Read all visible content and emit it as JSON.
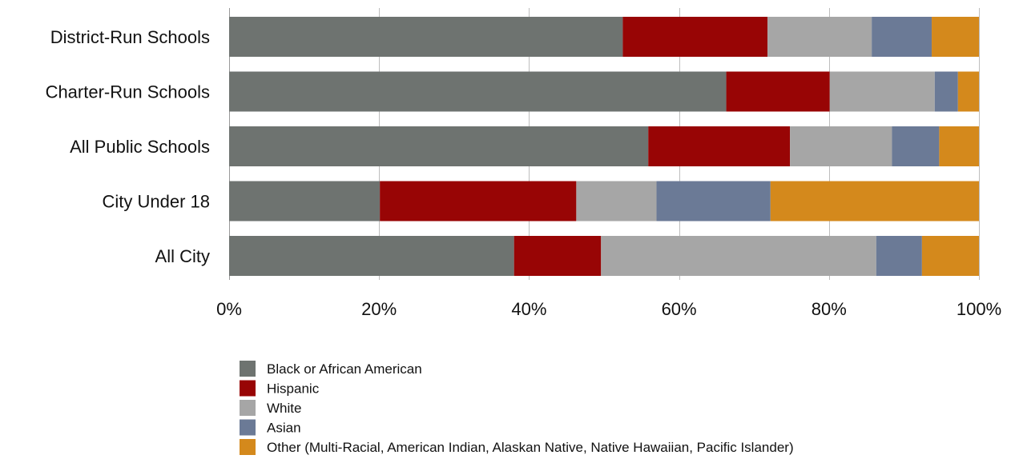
{
  "chart_data": {
    "type": "bar",
    "orientation": "horizontal",
    "stacked": true,
    "percent_stacked": true,
    "title": "",
    "xlabel": "",
    "ylabel": "",
    "xlim": [
      0,
      100
    ],
    "x_ticks": [
      "0%",
      "20%",
      "40%",
      "60%",
      "80%",
      "100%"
    ],
    "grid": true,
    "legend_position": "bottom",
    "categories": [
      "District-Run Schools",
      "Charter-Run Schools",
      "All Public Schools",
      "City Under 18",
      "All City"
    ],
    "series": [
      {
        "name": "Black or African American",
        "color": "#6e7370",
        "values": [
          52.5,
          66.3,
          55.9,
          20.1,
          38.0
        ]
      },
      {
        "name": "Hispanic",
        "color": "#980505",
        "values": [
          19.3,
          13.8,
          18.9,
          26.2,
          11.6
        ]
      },
      {
        "name": "White",
        "color": "#a6a6a6",
        "values": [
          13.9,
          14.0,
          13.6,
          10.7,
          36.7
        ]
      },
      {
        "name": "Asian",
        "color": "#6b7a96",
        "values": [
          8.0,
          3.1,
          6.3,
          15.2,
          6.1
        ]
      },
      {
        "name": "Other (Multi-Racial, American Indian, Alaskan Native, Native Hawaiian, Pacific Islander)",
        "color": "#d4891c",
        "values": [
          6.3,
          2.8,
          5.3,
          27.8,
          7.6
        ]
      }
    ]
  }
}
